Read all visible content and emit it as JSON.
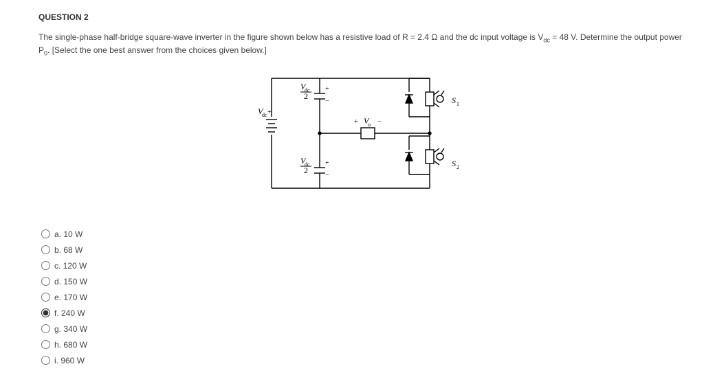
{
  "question": {
    "heading": "QUESTION 2",
    "body_html": "The single-phase half-bridge square-wave inverter in the figure shown below has a resistive load of  R = 2.4 Ω  and the dc input voltage is  V<sub>dc</sub> = 48 V.  Determine the output power P<sub>0</sub>.  [Select the one best answer from the choices given below.]",
    "options": [
      {
        "id": "a",
        "label": "a. 10 W",
        "selected": false
      },
      {
        "id": "b",
        "label": "b. 68 W",
        "selected": false
      },
      {
        "id": "c",
        "label": "c. 120 W",
        "selected": false
      },
      {
        "id": "d",
        "label": "d. 150 W",
        "selected": false
      },
      {
        "id": "e",
        "label": "e. 170 W",
        "selected": false
      },
      {
        "id": "f",
        "label": "f. 240 W",
        "selected": true
      },
      {
        "id": "g",
        "label": "g. 340 W",
        "selected": false
      },
      {
        "id": "h",
        "label": "h. 680 W",
        "selected": false
      },
      {
        "id": "i",
        "label": "i. 960 W",
        "selected": false
      }
    ]
  },
  "diagram": {
    "type": "circuit-schematic",
    "stroke_color": "#000000",
    "stroke_width": 1.4,
    "background": "#ffffff",
    "text_color": "#000000",
    "font_size_pt": 9,
    "source_label_html": "V<sub>dc</sub>",
    "cap_top_label_html": "V<sub>dc</sub>/2",
    "cap_bot_label_html": "V<sub>dc</sub>/2",
    "load_label_html": "V<sub>o</sub>",
    "switch_top_label_html": "S<sub>1</sub>",
    "switch_bot_label_html": "S<sub>2</sub>"
  }
}
